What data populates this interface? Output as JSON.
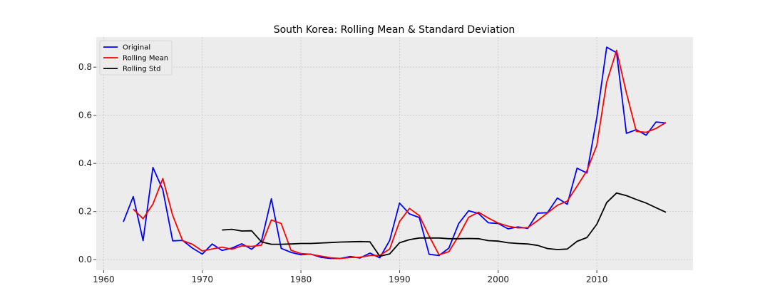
{
  "chart_data": {
    "type": "line",
    "title": "South Korea: Rolling Mean & Standard Deviation",
    "xlabel": "",
    "ylabel": "",
    "xlim": [
      1959.25,
      2019.75
    ],
    "ylim": [
      -0.044,
      0.925
    ],
    "x_ticks": [
      1960,
      1970,
      1980,
      1990,
      2000,
      2010
    ],
    "y_ticks": [
      0.0,
      0.2,
      0.4,
      0.6,
      0.8
    ],
    "x_tick_labels": [
      "1960",
      "1970",
      "1980",
      "1990",
      "2000",
      "2010"
    ],
    "y_tick_labels": [
      "0.0",
      "0.2",
      "0.4",
      "0.6",
      "0.8"
    ],
    "grid": true,
    "legend_position": "top-left",
    "series": [
      {
        "name": "Original",
        "color": "#0000ff",
        "x": [
          1962,
          1963,
          1964,
          1965,
          1966,
          1967,
          1968,
          1969,
          1970,
          1971,
          1972,
          1973,
          1974,
          1975,
          1976,
          1977,
          1978,
          1979,
          1980,
          1981,
          1982,
          1983,
          1984,
          1985,
          1986,
          1987,
          1988,
          1989,
          1990,
          1991,
          1992,
          1993,
          1994,
          1995,
          1996,
          1997,
          1998,
          1999,
          2000,
          2001,
          2002,
          2003,
          2004,
          2005,
          2006,
          2007,
          2008,
          2009,
          2010,
          2011,
          2012,
          2013,
          2014,
          2015,
          2016,
          2017
        ],
        "values": [
          0.157,
          0.262,
          0.079,
          0.383,
          0.29,
          0.078,
          0.08,
          0.048,
          0.023,
          0.065,
          0.038,
          0.048,
          0.066,
          0.043,
          0.077,
          0.253,
          0.047,
          0.03,
          0.02,
          0.023,
          0.01,
          0.005,
          0.005,
          0.013,
          0.007,
          0.027,
          0.008,
          0.08,
          0.235,
          0.19,
          0.175,
          0.022,
          0.017,
          0.048,
          0.15,
          0.203,
          0.192,
          0.153,
          0.15,
          0.128,
          0.136,
          0.13,
          0.193,
          0.195,
          0.256,
          0.23,
          0.38,
          0.36,
          0.59,
          0.883,
          0.86,
          0.525,
          0.54,
          0.517,
          0.572,
          0.568
        ]
      },
      {
        "name": "Rolling Mean",
        "color": "#ff0000",
        "x": [
          1963,
          1964,
          1965,
          1966,
          1967,
          1968,
          1969,
          1970,
          1971,
          1972,
          1973,
          1974,
          1975,
          1976,
          1977,
          1978,
          1979,
          1980,
          1981,
          1982,
          1983,
          1984,
          1985,
          1986,
          1987,
          1988,
          1989,
          1990,
          1991,
          1992,
          1993,
          1994,
          1995,
          1996,
          1997,
          1998,
          1999,
          2000,
          2001,
          2002,
          2003,
          2004,
          2005,
          2006,
          2007,
          2008,
          2009,
          2010,
          2011,
          2012,
          2013,
          2014,
          2015,
          2016,
          2017
        ],
        "values": [
          0.21,
          0.17,
          0.231,
          0.337,
          0.184,
          0.079,
          0.064,
          0.036,
          0.044,
          0.052,
          0.043,
          0.057,
          0.055,
          0.06,
          0.165,
          0.15,
          0.039,
          0.025,
          0.022,
          0.015,
          0.008,
          0.005,
          0.009,
          0.01,
          0.017,
          0.018,
          0.044,
          0.158,
          0.213,
          0.183,
          0.098,
          0.02,
          0.033,
          0.099,
          0.176,
          0.197,
          0.173,
          0.152,
          0.139,
          0.132,
          0.133,
          0.162,
          0.194,
          0.226,
          0.243,
          0.305,
          0.37,
          0.475,
          0.737,
          0.87,
          0.693,
          0.533,
          0.529,
          0.545,
          0.57
        ]
      },
      {
        "name": "Rolling Std",
        "color": "#000000",
        "x": [
          1972,
          1973,
          1974,
          1975,
          1976,
          1977,
          1978,
          1979,
          1980,
          1981,
          1982,
          1983,
          1984,
          1985,
          1986,
          1987,
          1988,
          1989,
          1990,
          1991,
          1992,
          1993,
          1994,
          1995,
          1996,
          1997,
          1998,
          1999,
          2000,
          2001,
          2002,
          2003,
          2004,
          2005,
          2006,
          2007,
          2008,
          2009,
          2010,
          2011,
          2012,
          2013,
          2014,
          2015,
          2016,
          2017
        ],
        "values": [
          0.123,
          0.126,
          0.119,
          0.12,
          0.074,
          0.064,
          0.064,
          0.065,
          0.067,
          0.067,
          0.069,
          0.071,
          0.073,
          0.074,
          0.075,
          0.074,
          0.014,
          0.024,
          0.07,
          0.083,
          0.09,
          0.09,
          0.09,
          0.087,
          0.087,
          0.088,
          0.087,
          0.079,
          0.077,
          0.07,
          0.067,
          0.065,
          0.059,
          0.046,
          0.042,
          0.044,
          0.076,
          0.092,
          0.147,
          0.237,
          0.277,
          0.266,
          0.25,
          0.235,
          0.216,
          0.197
        ]
      }
    ]
  }
}
